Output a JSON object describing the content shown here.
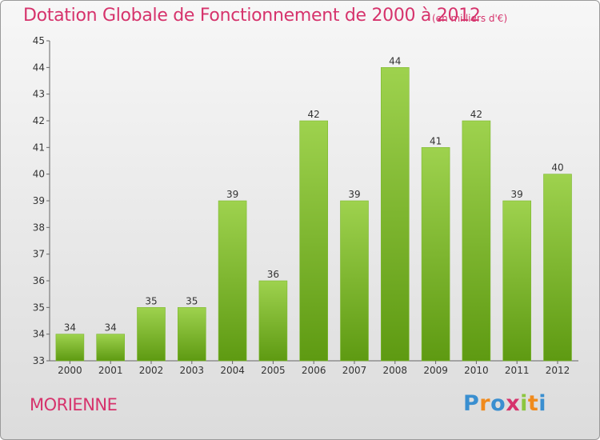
{
  "chart_data": {
    "type": "bar",
    "title": "Dotation Globale de Fonctionnement de 2000 à 2012",
    "unit_note": "(en milliers d'€)",
    "categories": [
      "2000",
      "2001",
      "2002",
      "2003",
      "2004",
      "2005",
      "2006",
      "2007",
      "2008",
      "2009",
      "2010",
      "2011",
      "2012"
    ],
    "values": [
      34,
      34,
      35,
      35,
      39,
      36,
      42,
      39,
      44,
      41,
      42,
      39,
      40
    ],
    "ylim": [
      33,
      45
    ],
    "yticks": [
      33,
      34,
      35,
      36,
      37,
      38,
      39,
      40,
      41,
      42,
      43,
      44,
      45
    ],
    "grid": false,
    "colors": {
      "bar_top": "#9ed24e",
      "bar_bottom": "#5e9a12",
      "text_accent": "#d6336c"
    }
  },
  "footer": {
    "location": "MORIENNE",
    "logo": "Proxiti",
    "logo_colors": [
      "#3a8fd0",
      "#f08a1c",
      "#3a8fd0",
      "#d6336c",
      "#8cc63f",
      "#f08a1c",
      "#3a8fd0"
    ]
  }
}
